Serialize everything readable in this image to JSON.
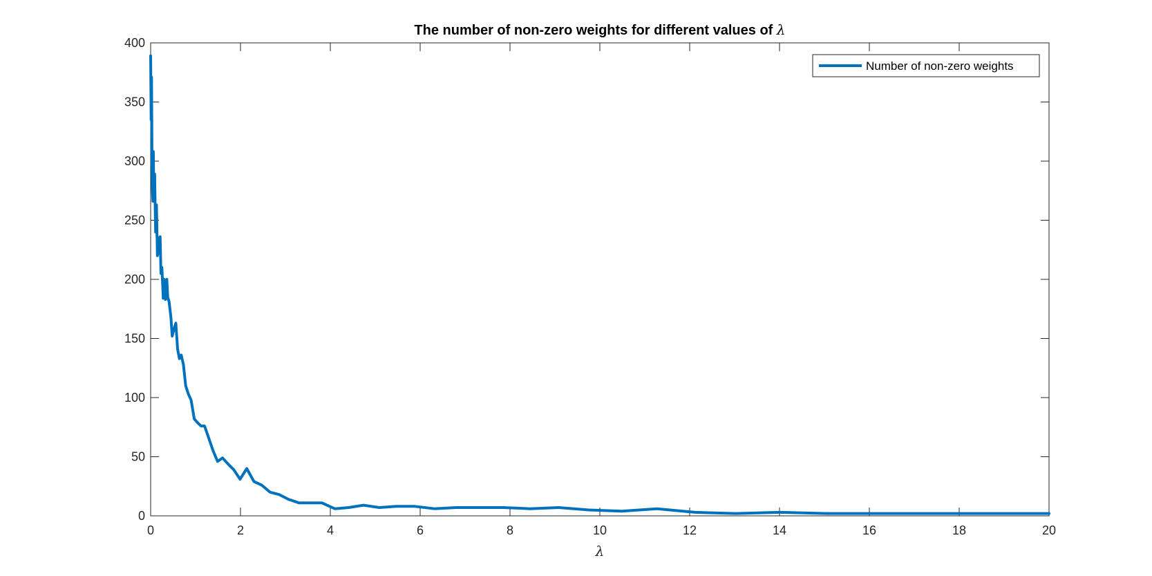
{
  "chart_data": {
    "type": "line",
    "title_prefix": "The number of non-zero weights for different values of ",
    "title_symbol": "λ",
    "xlabel": "λ",
    "ylabel": "",
    "xlim": [
      0,
      20
    ],
    "ylim": [
      0,
      400
    ],
    "xticks": [
      0,
      2,
      4,
      6,
      8,
      10,
      12,
      14,
      16,
      18,
      20
    ],
    "yticks": [
      0,
      50,
      100,
      150,
      200,
      250,
      300,
      350,
      400
    ],
    "grid": false,
    "legend_position": "top-right",
    "series": [
      {
        "name": "Number of non-zero weights",
        "color": "#0072BD",
        "x": [
          0.0,
          0.01,
          0.02,
          0.03,
          0.04,
          0.05,
          0.06,
          0.07,
          0.08,
          0.09,
          0.1,
          0.11,
          0.13,
          0.15,
          0.17,
          0.19,
          0.21,
          0.23,
          0.25,
          0.28,
          0.3,
          0.33,
          0.36,
          0.38,
          0.41,
          0.45,
          0.48,
          0.52,
          0.56,
          0.6,
          0.64,
          0.68,
          0.73,
          0.78,
          0.84,
          0.9,
          0.97,
          1.04,
          1.12,
          1.2,
          1.29,
          1.39,
          1.49,
          1.6,
          1.72,
          1.85,
          1.99,
          2.14,
          2.3,
          2.47,
          2.66,
          2.86,
          3.07,
          3.3,
          3.55,
          3.81,
          4.1,
          4.41,
          4.74,
          5.09,
          5.47,
          5.88,
          6.32,
          6.8,
          7.31,
          7.85,
          8.44,
          9.08,
          9.76,
          10.49,
          11.27,
          12.12,
          13.03,
          14.0,
          15.05,
          16.18,
          17.39,
          18.69,
          20.0
        ],
        "y": [
          389,
          335,
          371,
          306,
          276,
          266,
          308,
          271,
          268,
          289,
          263,
          240,
          263,
          220,
          235,
          222,
          236,
          205,
          210,
          184,
          200,
          183,
          200,
          185,
          181,
          168,
          152,
          158,
          163,
          141,
          133,
          136,
          128,
          110,
          103,
          98,
          82,
          79,
          76,
          76,
          66,
          55,
          46,
          49,
          44,
          39,
          31,
          40,
          29,
          26,
          20,
          18,
          14,
          11,
          11,
          11,
          6,
          7,
          9,
          7,
          8,
          8,
          6,
          7,
          7,
          7,
          6,
          7,
          5,
          4,
          6,
          3,
          2,
          3,
          2,
          2,
          2,
          2,
          2
        ]
      }
    ]
  }
}
